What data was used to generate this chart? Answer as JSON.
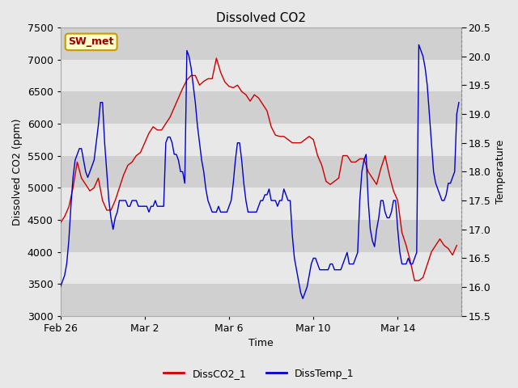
{
  "title": "Dissolved CO2",
  "xlabel": "Time",
  "ylabel_left": "Dissolved CO2 (ppm)",
  "ylabel_right": "Temperature",
  "ylim_left": [
    3000,
    7500
  ],
  "ylim_right": [
    15.5,
    20.5
  ],
  "yticks_left": [
    3000,
    3500,
    4000,
    4500,
    5000,
    5500,
    6000,
    6500,
    7000,
    7500
  ],
  "yticks_right": [
    15.5,
    16.0,
    16.5,
    17.0,
    17.5,
    18.0,
    18.5,
    19.0,
    19.5,
    20.0,
    20.5
  ],
  "xtick_labels": [
    "Feb 26",
    "Mar 2",
    "Mar 6",
    "Mar 10",
    "Mar 14"
  ],
  "xtick_offsets": [
    0,
    4,
    8,
    12,
    16
  ],
  "xlim_days": [
    0,
    19
  ],
  "legend_label_co2": "DissCO2_1",
  "legend_label_temp": "DissTemp_1",
  "co2_color": "#cc0000",
  "temp_color": "#0000cc",
  "annotation_text": "SW_met",
  "annotation_bg": "#ffffcc",
  "annotation_border": "#cc9900",
  "annotation_text_color": "#990000",
  "figure_bg": "#e8e8e8",
  "band_light": "#e8e8e8",
  "band_dark": "#d0d0d0",
  "title_fontsize": 11,
  "label_fontsize": 9,
  "tick_fontsize": 9,
  "co2_data_x": [
    0,
    0.2,
    0.4,
    0.6,
    0.8,
    1.0,
    1.2,
    1.4,
    1.6,
    1.8,
    2.0,
    2.2,
    2.4,
    2.6,
    2.8,
    3.0,
    3.2,
    3.4,
    3.6,
    3.8,
    4.0,
    4.2,
    4.4,
    4.6,
    4.8,
    5.0,
    5.2,
    5.4,
    5.6,
    5.8,
    6.0,
    6.2,
    6.4,
    6.6,
    6.8,
    7.0,
    7.2,
    7.4,
    7.6,
    7.8,
    8.0,
    8.2,
    8.4,
    8.6,
    8.8,
    9.0,
    9.2,
    9.4,
    9.6,
    9.8,
    10.0,
    10.2,
    10.4,
    10.6,
    10.8,
    11.0,
    11.2,
    11.4,
    11.6,
    11.8,
    12.0,
    12.2,
    12.4,
    12.6,
    12.8,
    13.0,
    13.2,
    13.4,
    13.6,
    13.8,
    14.0,
    14.2,
    14.4,
    14.6,
    14.8,
    15.0,
    15.2,
    15.4,
    15.6,
    15.8,
    16.0,
    16.2,
    16.4,
    16.6,
    16.8,
    17.0,
    17.2,
    17.4,
    17.6,
    17.8,
    18.0,
    18.2,
    18.4,
    18.6,
    18.8
  ],
  "co2_data_y": [
    4450,
    4550,
    4700,
    5000,
    5400,
    5150,
    5050,
    4950,
    5000,
    5150,
    4800,
    4650,
    4650,
    4800,
    5000,
    5200,
    5350,
    5400,
    5500,
    5550,
    5700,
    5850,
    5950,
    5900,
    5900,
    6000,
    6100,
    6250,
    6400,
    6550,
    6680,
    6750,
    6750,
    6600,
    6660,
    6700,
    6700,
    7020,
    6800,
    6650,
    6580,
    6560,
    6600,
    6500,
    6450,
    6350,
    6450,
    6400,
    6300,
    6200,
    5950,
    5820,
    5800,
    5800,
    5750,
    5700,
    5700,
    5700,
    5750,
    5800,
    5750,
    5500,
    5350,
    5100,
    5050,
    5100,
    5150,
    5500,
    5500,
    5400,
    5400,
    5450,
    5450,
    5250,
    5150,
    5050,
    5300,
    5500,
    5200,
    4950,
    4800,
    4300,
    4100,
    3850,
    3550,
    3550,
    3600,
    3800,
    4000,
    4100,
    4200,
    4100,
    4050,
    3950,
    4100
  ],
  "temp_data_x": [
    0,
    0.1,
    0.2,
    0.3,
    0.4,
    0.5,
    0.6,
    0.7,
    0.8,
    0.9,
    1.0,
    1.1,
    1.2,
    1.3,
    1.4,
    1.5,
    1.6,
    1.7,
    1.8,
    1.9,
    2.0,
    2.1,
    2.2,
    2.3,
    2.4,
    2.5,
    2.6,
    2.7,
    2.8,
    2.9,
    3.0,
    3.1,
    3.2,
    3.3,
    3.4,
    3.5,
    3.6,
    3.7,
    3.8,
    3.9,
    4.0,
    4.1,
    4.2,
    4.3,
    4.4,
    4.5,
    4.6,
    4.7,
    4.8,
    4.9,
    5.0,
    5.1,
    5.2,
    5.3,
    5.4,
    5.5,
    5.6,
    5.7,
    5.8,
    5.9,
    6.0,
    6.1,
    6.2,
    6.3,
    6.4,
    6.5,
    6.6,
    6.7,
    6.8,
    6.9,
    7.0,
    7.1,
    7.2,
    7.3,
    7.4,
    7.5,
    7.6,
    7.7,
    7.8,
    7.9,
    8.0,
    8.1,
    8.2,
    8.3,
    8.4,
    8.5,
    8.6,
    8.7,
    8.8,
    8.9,
    9.0,
    9.1,
    9.2,
    9.3,
    9.4,
    9.5,
    9.6,
    9.7,
    9.8,
    9.9,
    10.0,
    10.1,
    10.2,
    10.3,
    10.4,
    10.5,
    10.6,
    10.7,
    10.8,
    10.9,
    11.0,
    11.1,
    11.2,
    11.3,
    11.4,
    11.5,
    11.6,
    11.7,
    11.8,
    11.9,
    12.0,
    12.1,
    12.2,
    12.3,
    12.4,
    12.5,
    12.6,
    12.7,
    12.8,
    12.9,
    13.0,
    13.1,
    13.2,
    13.3,
    13.4,
    13.5,
    13.6,
    13.7,
    13.8,
    13.9,
    14.0,
    14.1,
    14.2,
    14.3,
    14.4,
    14.5,
    14.6,
    14.7,
    14.8,
    14.9,
    15.0,
    15.1,
    15.2,
    15.3,
    15.4,
    15.5,
    15.6,
    15.7,
    15.8,
    15.9,
    16.0,
    16.1,
    16.2,
    16.3,
    16.4,
    16.5,
    16.6,
    16.7,
    16.8,
    16.9,
    17.0,
    17.1,
    17.2,
    17.3,
    17.4,
    17.5,
    17.6,
    17.7,
    17.8,
    17.9,
    18.0,
    18.1,
    18.2,
    18.3,
    18.4,
    18.5,
    18.6,
    18.7,
    18.8,
    18.9
  ],
  "temp_data_y": [
    16.0,
    16.1,
    16.2,
    16.4,
    16.8,
    17.4,
    17.9,
    18.2,
    18.3,
    18.4,
    18.4,
    18.2,
    18.0,
    17.9,
    18.0,
    18.1,
    18.2,
    18.5,
    18.8,
    19.2,
    19.2,
    18.5,
    18.0,
    17.5,
    17.2,
    17.0,
    17.2,
    17.3,
    17.5,
    17.5,
    17.5,
    17.5,
    17.4,
    17.4,
    17.5,
    17.5,
    17.5,
    17.4,
    17.4,
    17.4,
    17.4,
    17.4,
    17.3,
    17.4,
    17.4,
    17.5,
    17.4,
    17.4,
    17.4,
    17.4,
    18.5,
    18.6,
    18.6,
    18.5,
    18.3,
    18.3,
    18.2,
    18.0,
    18.0,
    17.8,
    20.1,
    20.0,
    19.8,
    19.5,
    19.2,
    18.8,
    18.5,
    18.2,
    18.0,
    17.7,
    17.5,
    17.4,
    17.3,
    17.3,
    17.3,
    17.4,
    17.3,
    17.3,
    17.3,
    17.3,
    17.4,
    17.5,
    17.8,
    18.2,
    18.5,
    18.5,
    18.2,
    17.8,
    17.5,
    17.3,
    17.3,
    17.3,
    17.3,
    17.3,
    17.4,
    17.5,
    17.5,
    17.6,
    17.6,
    17.7,
    17.5,
    17.5,
    17.5,
    17.4,
    17.5,
    17.5,
    17.7,
    17.6,
    17.5,
    17.5,
    16.9,
    16.5,
    16.3,
    16.1,
    15.9,
    15.8,
    15.9,
    16.0,
    16.2,
    16.4,
    16.5,
    16.5,
    16.4,
    16.3,
    16.3,
    16.3,
    16.3,
    16.3,
    16.4,
    16.4,
    16.3,
    16.3,
    16.3,
    16.3,
    16.4,
    16.5,
    16.6,
    16.4,
    16.4,
    16.4,
    16.5,
    16.6,
    17.5,
    18.0,
    18.2,
    18.3,
    17.5,
    17.0,
    16.8,
    16.7,
    17.0,
    17.2,
    17.5,
    17.5,
    17.3,
    17.2,
    17.2,
    17.3,
    17.5,
    17.5,
    17.0,
    16.6,
    16.4,
    16.4,
    16.4,
    16.5,
    16.4,
    16.4,
    16.5,
    16.6,
    20.2,
    20.1,
    20.0,
    19.8,
    19.5,
    19.0,
    18.5,
    18.0,
    17.8,
    17.7,
    17.6,
    17.5,
    17.5,
    17.6,
    17.8,
    17.8,
    17.9,
    18.0,
    19.0,
    19.2
  ]
}
